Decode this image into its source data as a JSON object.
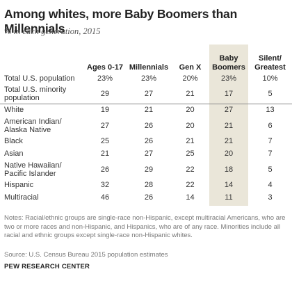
{
  "header": {
    "title": "Among whites, more Baby Boomers than Millennials",
    "subtitle": "% in each generation, 2015"
  },
  "chart_data": {
    "type": "table",
    "columns": [
      "Ages 0-17",
      "Millennials",
      "Gen X",
      "Baby Boomers",
      "Silent/ Greatest"
    ],
    "highlight_column": "Baby Boomers",
    "highlight_color": "#eae6d9",
    "rows": [
      {
        "label": "Total U.S. population",
        "values": [
          "23%",
          "23%",
          "20%",
          "23%",
          "10%"
        ]
      },
      {
        "label": "Total U.S. minority population",
        "values": [
          "29",
          "27",
          "21",
          "17",
          "5"
        ]
      },
      {
        "label": "White",
        "values": [
          "19",
          "21",
          "20",
          "27",
          "13"
        ]
      },
      {
        "label": "American Indian/ Alaska Native",
        "values": [
          "27",
          "26",
          "20",
          "21",
          "6"
        ]
      },
      {
        "label": "Black",
        "values": [
          "25",
          "26",
          "21",
          "21",
          "7"
        ]
      },
      {
        "label": "Asian",
        "values": [
          "21",
          "27",
          "25",
          "20",
          "7"
        ]
      },
      {
        "label": "Native Hawaiian/ Pacific Islander",
        "values": [
          "26",
          "29",
          "22",
          "18",
          "5"
        ]
      },
      {
        "label": "Hispanic",
        "values": [
          "32",
          "28",
          "22",
          "14",
          "4"
        ]
      },
      {
        "label": "Multiracial",
        "values": [
          "46",
          "26",
          "14",
          "11",
          "3"
        ]
      }
    ]
  },
  "footer": {
    "notes": "Notes: Racial/ethnic groups are single-race non-Hispanic, except multiracial Americans, who are two or more races and non-Hispanic, and Hispanics, who are of any race. Minorities include all racial and ethnic groups except single-race non-Hispanic whites.",
    "source": "Source: U.S. Census Bureau 2015 population estimates",
    "brand": "PEW RESEARCH CENTER"
  }
}
